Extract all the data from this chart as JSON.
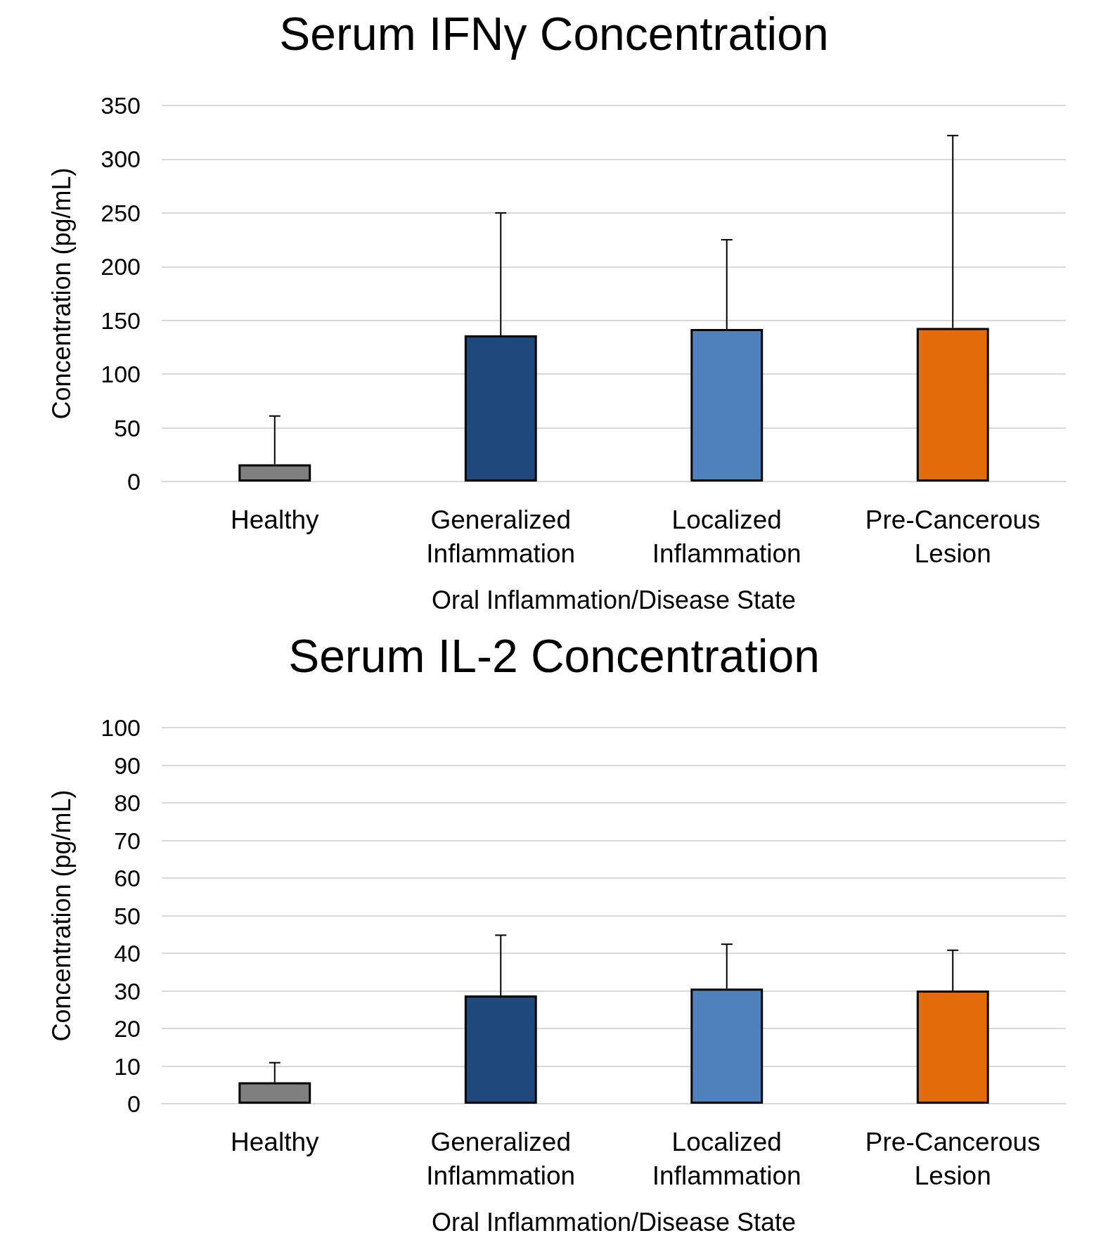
{
  "chart_data": [
    {
      "type": "bar",
      "title": "Serum IFNγ Concentration",
      "xlabel": "Oral Inflammation/Disease State",
      "ylabel": "Concentration (pg/mL)",
      "categories": [
        "Healthy",
        "Generalized\nInflammation",
        "Localized\nInflammation",
        "Pre-Cancerous\nLesion"
      ],
      "values": [
        16,
        136,
        142,
        143
      ],
      "colors": [
        "#7f7f7f",
        "#1f497d",
        "#4f81bd",
        "#e36c0a"
      ],
      "errors": [
        [
          16,
          61
        ],
        [
          136,
          250
        ],
        [
          142,
          225
        ],
        [
          143,
          322
        ]
      ],
      "ylim": [
        0,
        350
      ],
      "yticks": [
        0,
        50,
        100,
        150,
        200,
        250,
        300,
        350
      ],
      "grid": "y"
    },
    {
      "type": "bar",
      "title": "Serum IL-2 Concentration",
      "xlabel": "Oral Inflammation/Disease State",
      "ylabel": "Concentration (pg/mL)",
      "categories": [
        "Healthy",
        "Generalized\nInflammation",
        "Localized\nInflammation",
        "Pre-Cancerous\nLesion"
      ],
      "values": [
        5.7,
        28.8,
        30.6,
        30.1
      ],
      "colors": [
        "#7f7f7f",
        "#1f497d",
        "#4f81bd",
        "#e36c0a"
      ],
      "errors": [
        [
          5.7,
          10.9
        ],
        [
          28.8,
          44.8
        ],
        [
          30.6,
          42.4
        ],
        [
          30.1,
          40.8
        ]
      ],
      "ylim": [
        0,
        100
      ],
      "yticks": [
        0,
        10,
        20,
        30,
        40,
        50,
        60,
        70,
        80,
        90,
        100
      ],
      "grid": "y"
    }
  ]
}
